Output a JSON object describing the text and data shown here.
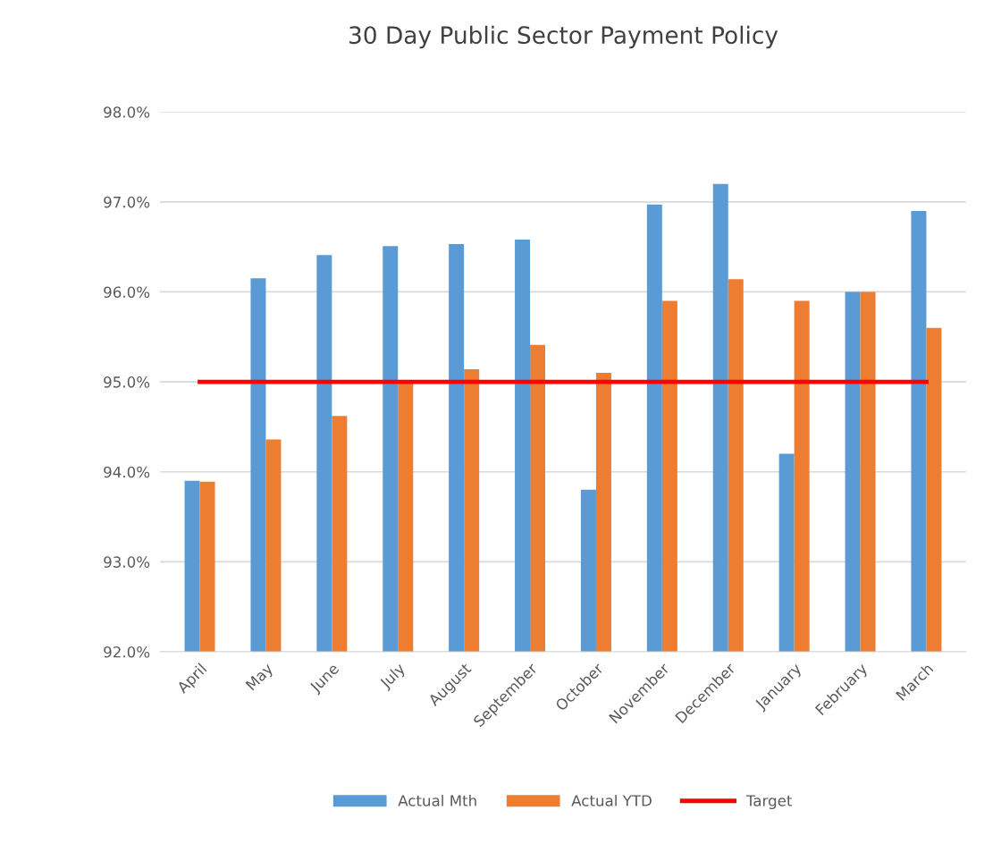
{
  "chart_data": {
    "type": "bar",
    "title": "30 Day Public Sector Payment Policy",
    "categories": [
      "April",
      "May",
      "June",
      "July",
      "August",
      "September",
      "October",
      "November",
      "December",
      "January",
      "February",
      "March"
    ],
    "series": [
      {
        "name": "Actual Mth",
        "color": "#5b9bd5",
        "values": [
          93.9,
          96.15,
          96.41,
          96.51,
          96.53,
          96.58,
          93.8,
          96.97,
          97.2,
          94.2,
          96.0,
          96.9
        ]
      },
      {
        "name": "Actual YTD",
        "color": "#ed7d31",
        "values": [
          93.89,
          94.36,
          94.62,
          95.0,
          95.14,
          95.41,
          95.1,
          95.9,
          96.14,
          95.9,
          96.0,
          95.6
        ]
      },
      {
        "name": "Target",
        "color": "#ff0000",
        "type": "line",
        "values": [
          95,
          95,
          95,
          95,
          95,
          95,
          95,
          95,
          95,
          95,
          95,
          95
        ]
      }
    ],
    "ylim": [
      92,
      98
    ],
    "yticks": [
      {
        "value": 92,
        "label": "92.0%"
      },
      {
        "value": 93,
        "label": "93.0%"
      },
      {
        "value": 94,
        "label": "94.0%"
      },
      {
        "value": 95,
        "label": "95.0%"
      },
      {
        "value": 96,
        "label": "96.0%"
      },
      {
        "value": 97,
        "label": "97.0%"
      },
      {
        "value": 98,
        "label": "98.0%"
      }
    ],
    "grid": "y",
    "legend": "bottom"
  }
}
